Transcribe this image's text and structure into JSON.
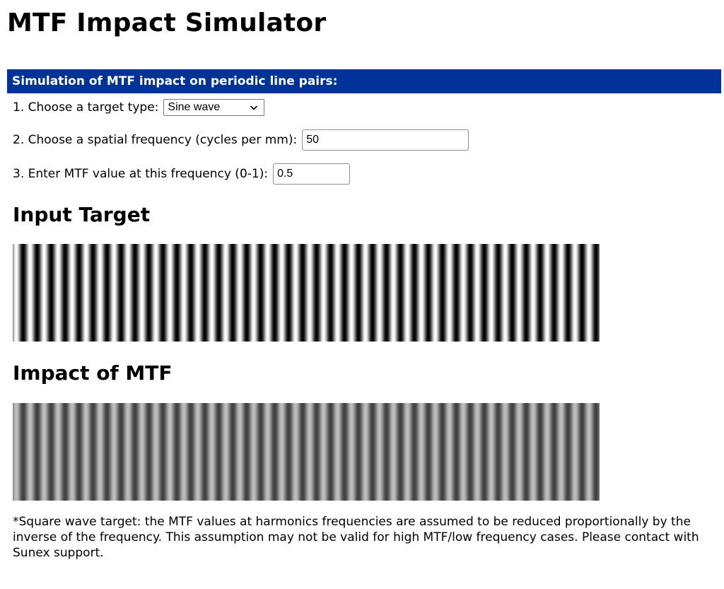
{
  "page": {
    "title": "MTF Impact Simulator"
  },
  "form": {
    "header": "Simulation of MTF impact on periodic line pairs:",
    "steps": [
      {
        "label": "1. Choose a target type:",
        "value": "Sine wave"
      },
      {
        "label": "2. Choose a spatial frequency (cycles per mm):",
        "value": "50"
      },
      {
        "label": "3. Enter MTF value at this frequency (0-1):",
        "value": "0.5"
      }
    ]
  },
  "target": {
    "cycles_shown": 42,
    "input_modulation": 1.0,
    "mtf": 0.5
  },
  "sections": {
    "input_heading": "Input Target",
    "impact_heading": "Impact of MTF"
  },
  "footnote": "*Square wave target: the MTF values at harmonics frequencies are assumed to be reduced proportionally by the inverse of the frequency. This assumption may not be valid for high MTF/low frequency cases. Please contact with Sunex support.",
  "icons": {
    "select_arrow": "chevron-down-icon"
  }
}
